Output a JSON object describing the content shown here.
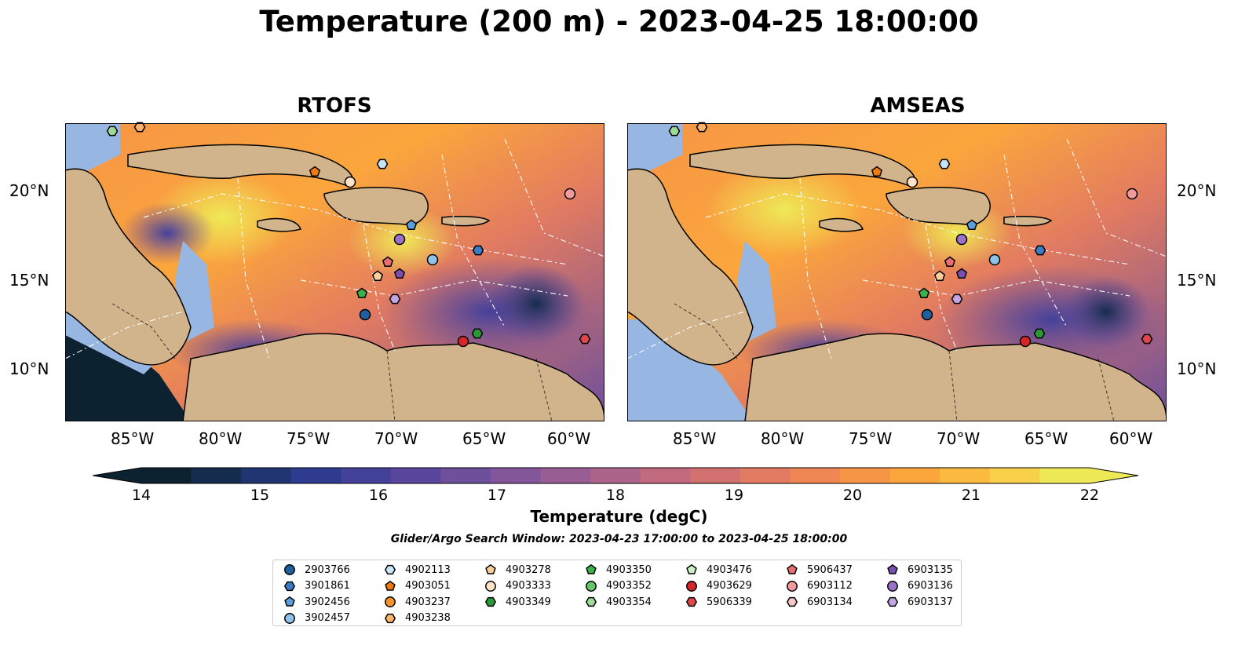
{
  "title": "Temperature (200 m) - 2023-04-25 18:00:00",
  "panels": [
    {
      "title": "RTOFS"
    },
    {
      "title": "AMSEAS"
    }
  ],
  "axes": {
    "lat_ticks": [
      "20°N",
      "15°N",
      "10°N"
    ],
    "lon_ticks": [
      "85°W",
      "80°W",
      "75°W",
      "70°W",
      "65°W",
      "60°W"
    ]
  },
  "colorbar": {
    "label": "Temperature (degC)",
    "ticks": [
      "14",
      "15",
      "16",
      "17",
      "18",
      "19",
      "20",
      "21",
      "22"
    ],
    "colors": [
      "#0c2230",
      "#152c4e",
      "#213573",
      "#2f3b8e",
      "#44419b",
      "#5a479d",
      "#6e4f9c",
      "#825699",
      "#985e93",
      "#ac648a",
      "#c26a7e",
      "#d37170",
      "#e27b61",
      "#ef8653",
      "#f69546",
      "#fba63d",
      "#fdba40",
      "#f8d04a",
      "#eee957"
    ]
  },
  "search_window": "Glider/Argo Search Window: 2023-04-23 17:00:00 to 2023-04-25 18:00:00",
  "legend": {
    "columns": [
      [
        {
          "label": "2903766",
          "marker": "circle",
          "color": "#1f5f9e"
        },
        {
          "label": "3901861",
          "marker": "hexagon",
          "color": "#3b7cc4"
        },
        {
          "label": "3902456",
          "marker": "pentagon",
          "color": "#5aa0dc"
        },
        {
          "label": "3902457",
          "marker": "circle",
          "color": "#8fc3ea"
        }
      ],
      [
        {
          "label": "4902113",
          "marker": "hexagon",
          "color": "#c8e4f7"
        },
        {
          "label": "4903051",
          "marker": "pentagon",
          "color": "#f07a12"
        },
        {
          "label": "4903237",
          "marker": "circle",
          "color": "#f7922d"
        },
        {
          "label": "4903238",
          "marker": "hexagon",
          "color": "#fbb36b"
        }
      ],
      [
        {
          "label": "4903278",
          "marker": "pentagon",
          "color": "#fdcd9a"
        },
        {
          "label": "4903333",
          "marker": "circle",
          "color": "#fde4c8"
        },
        {
          "label": "4903349",
          "marker": "hexagon",
          "color": "#2a9a35"
        }
      ],
      [
        {
          "label": "4903350",
          "marker": "pentagon",
          "color": "#3bb34a"
        },
        {
          "label": "4903352",
          "marker": "circle",
          "color": "#67c76b"
        },
        {
          "label": "4903354",
          "marker": "hexagon",
          "color": "#9ddb96"
        }
      ],
      [
        {
          "label": "4903476",
          "marker": "pentagon",
          "color": "#c9f0c3"
        },
        {
          "label": "4903629",
          "marker": "circle",
          "color": "#d62728"
        },
        {
          "label": "5906339",
          "marker": "hexagon",
          "color": "#e0474a"
        }
      ],
      [
        {
          "label": "5906437",
          "marker": "pentagon",
          "color": "#ea6d70"
        },
        {
          "label": "6903112",
          "marker": "circle",
          "color": "#f29a9c"
        },
        {
          "label": "6903134",
          "marker": "hexagon",
          "color": "#f8c6c6"
        }
      ],
      [
        {
          "label": "6903135",
          "marker": "pentagon",
          "color": "#7a4fb0"
        },
        {
          "label": "6903136",
          "marker": "circle",
          "color": "#9b72c8"
        },
        {
          "label": "6903137",
          "marker": "hexagon",
          "color": "#c1a6e0"
        }
      ]
    ]
  },
  "map_colors": {
    "land": "#d2b48c",
    "shelf": "#97b6e1",
    "ocean_deep_left": "#0c2230"
  }
}
